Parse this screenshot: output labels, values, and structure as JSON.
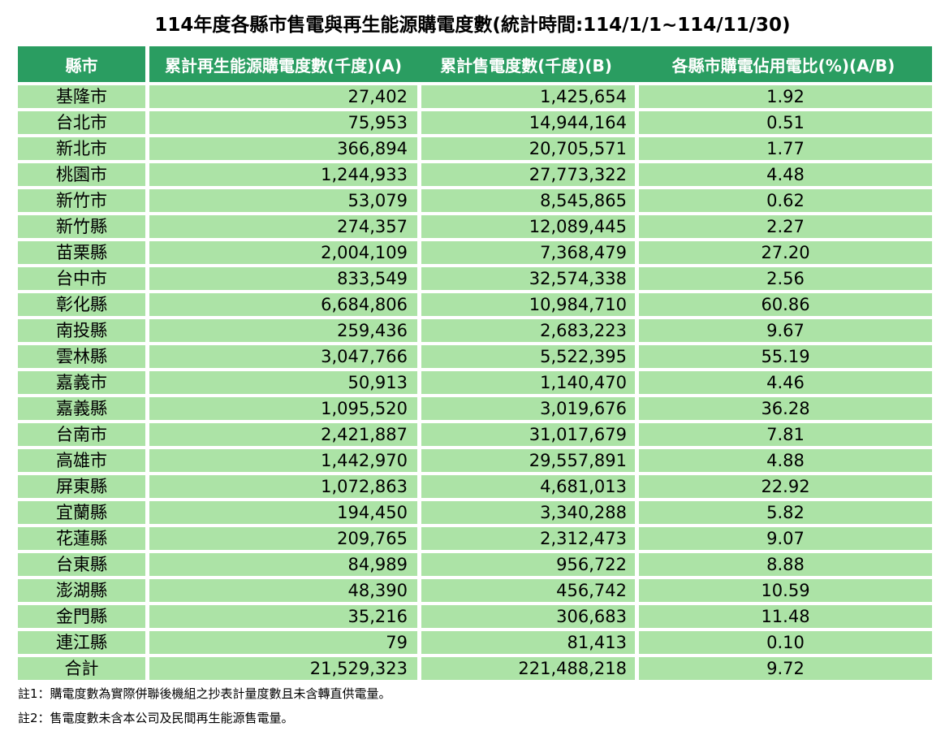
{
  "chart_data": {
    "type": "table",
    "title": "114年度各縣市售電與再生能源購電度數(統計時間:114/1/1~114/11/30)",
    "columns": [
      "縣市",
      "累計再生能源購電度數(千度)(A)",
      "累計售電度數(千度)(B)",
      "各縣市購電佔用電比(%)(A/B)"
    ],
    "rows": [
      [
        "基隆市",
        "27,402",
        "1,425,654",
        "1.92"
      ],
      [
        "台北市",
        "75,953",
        "14,944,164",
        "0.51"
      ],
      [
        "新北市",
        "366,894",
        "20,705,571",
        "1.77"
      ],
      [
        "桃園市",
        "1,244,933",
        "27,773,322",
        "4.48"
      ],
      [
        "新竹市",
        "53,079",
        "8,545,865",
        "0.62"
      ],
      [
        "新竹縣",
        "274,357",
        "12,089,445",
        "2.27"
      ],
      [
        "苗栗縣",
        "2,004,109",
        "7,368,479",
        "27.20"
      ],
      [
        "台中市",
        "833,549",
        "32,574,338",
        "2.56"
      ],
      [
        "彰化縣",
        "6,684,806",
        "10,984,710",
        "60.86"
      ],
      [
        "南投縣",
        "259,436",
        "2,683,223",
        "9.67"
      ],
      [
        "雲林縣",
        "3,047,766",
        "5,522,395",
        "55.19"
      ],
      [
        "嘉義市",
        "50,913",
        "1,140,470",
        "4.46"
      ],
      [
        "嘉義縣",
        "1,095,520",
        "3,019,676",
        "36.28"
      ],
      [
        "台南市",
        "2,421,887",
        "31,017,679",
        "7.81"
      ],
      [
        "高雄市",
        "1,442,970",
        "29,557,891",
        "4.88"
      ],
      [
        "屏東縣",
        "1,072,863",
        "4,681,013",
        "22.92"
      ],
      [
        "宜蘭縣",
        "194,450",
        "3,340,288",
        "5.82"
      ],
      [
        "花蓮縣",
        "209,765",
        "2,312,473",
        "9.07"
      ],
      [
        "台東縣",
        "84,989",
        "956,722",
        "8.88"
      ],
      [
        "澎湖縣",
        "48,390",
        "456,742",
        "10.59"
      ],
      [
        "金門縣",
        "35,216",
        "306,683",
        "11.48"
      ],
      [
        "連江縣",
        "79",
        "81,413",
        "0.10"
      ],
      [
        "合計",
        "21,529,323",
        "221,488,218",
        "9.72"
      ]
    ],
    "total_label": "合計",
    "notes": [
      "註1：購電度數為實際併聯後機組之抄表計量度數且未含轉直供電量。",
      "註2：售電度數未含本公司及民間再生能源售電量。"
    ]
  },
  "colors": {
    "header_bg": "#2A9D61",
    "row_bg": "#ACE3A6",
    "header_text": "#FFFFFF",
    "body_text": "#000000"
  }
}
